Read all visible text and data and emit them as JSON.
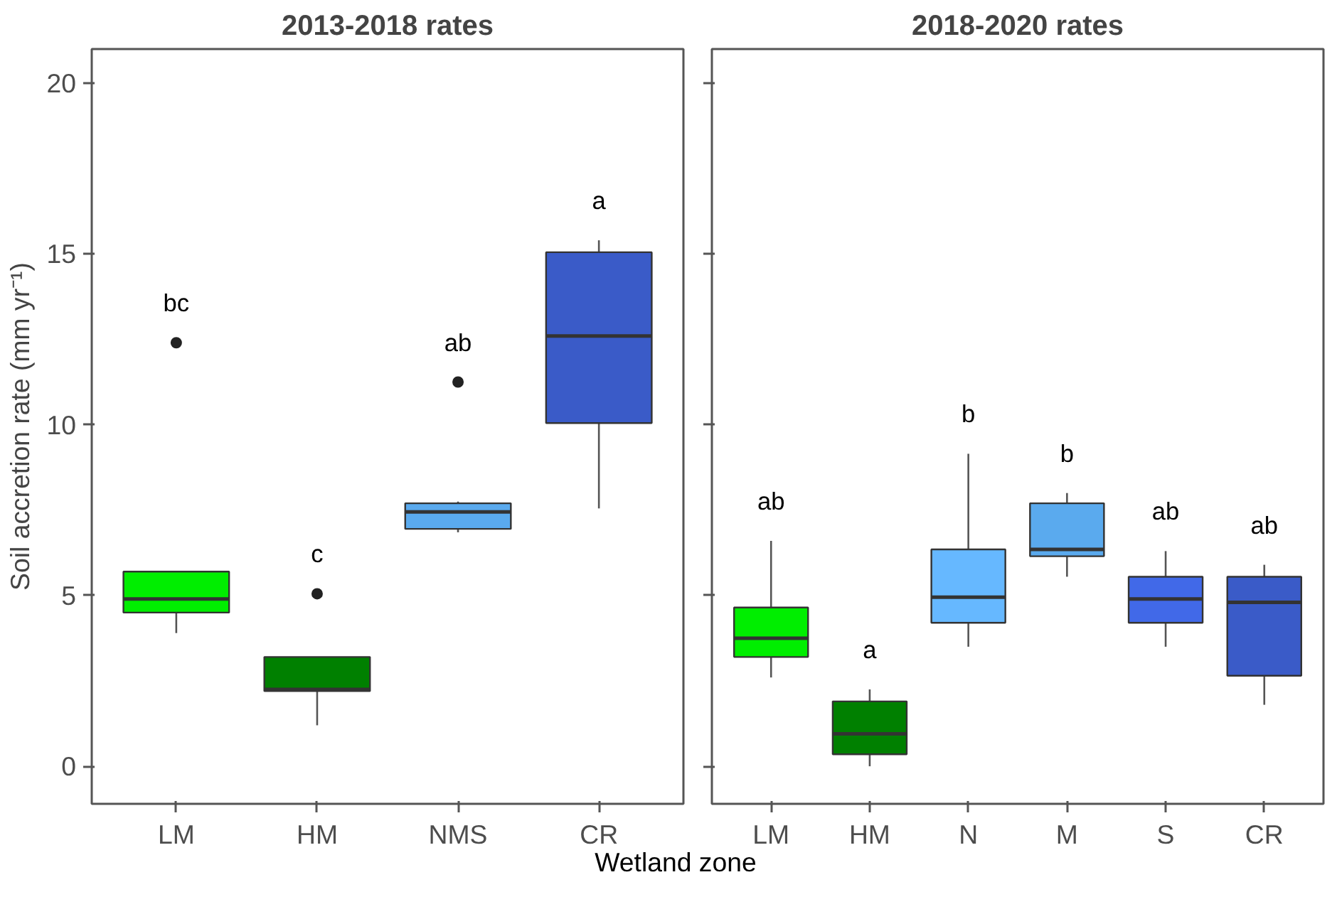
{
  "chart_data": [
    {
      "type": "box",
      "title": "2013-2018 rates",
      "ylabel": "Soil accretion rate (mm yr⁻¹)",
      "xlabel": "Wetland zone",
      "categories": [
        "LM",
        "HM",
        "NMS",
        "CR"
      ],
      "colors": [
        "#00ee00",
        "#008000",
        "#5aaaee",
        "#3a5bc8"
      ],
      "boxes": [
        {
          "low": 3.9,
          "q1": 4.5,
          "median": 4.9,
          "q3": 5.7,
          "high": 5.7,
          "outliers": [
            12.4
          ]
        },
        {
          "low": 1.2,
          "q1": 2.2,
          "median": 2.25,
          "q3": 3.2,
          "high": 3.2,
          "outliers": [
            5.05
          ]
        },
        {
          "low": 6.85,
          "q1": 6.95,
          "median": 7.45,
          "q3": 7.7,
          "high": 7.75,
          "outliers": [
            11.25
          ]
        },
        {
          "low": 7.55,
          "q1": 10.05,
          "median": 12.6,
          "q3": 15.05,
          "high": 15.4
        }
      ],
      "annotations": [
        "bc",
        "c",
        "ab",
        "a"
      ],
      "ylim": [
        -1.1,
        21
      ],
      "yticks": [
        0,
        5,
        10,
        15,
        20
      ],
      "grid": false
    },
    {
      "type": "box",
      "title": "2018-2020 rates",
      "categories": [
        "LM",
        "HM",
        "N",
        "M",
        "S",
        "CR"
      ],
      "colors": [
        "#00ee00",
        "#008000",
        "#66b8ff",
        "#5aaaee",
        "#4169e8",
        "#3a5bc8"
      ],
      "boxes": [
        {
          "low": 2.6,
          "q1": 3.2,
          "median": 3.75,
          "q3": 4.65,
          "high": 6.6
        },
        {
          "low": 0.0,
          "q1": 0.35,
          "median": 0.95,
          "q3": 1.9,
          "high": 2.25
        },
        {
          "low": 3.5,
          "q1": 4.2,
          "median": 4.95,
          "q3": 6.35,
          "high": 9.15
        },
        {
          "low": 5.55,
          "q1": 6.15,
          "median": 6.35,
          "q3": 7.7,
          "high": 8.0
        },
        {
          "low": 3.5,
          "q1": 4.2,
          "median": 4.9,
          "q3": 5.55,
          "high": 6.3
        },
        {
          "low": 1.8,
          "q1": 2.65,
          "median": 4.8,
          "q3": 5.55,
          "high": 5.9
        }
      ],
      "annotations": [
        "ab",
        "a",
        "b",
        "b",
        "ab",
        "ab"
      ],
      "ylim": [
        -1.1,
        21
      ],
      "yticks": [
        0,
        5,
        10,
        15,
        20
      ],
      "grid": false,
      "tick_labels": "x"
    }
  ]
}
